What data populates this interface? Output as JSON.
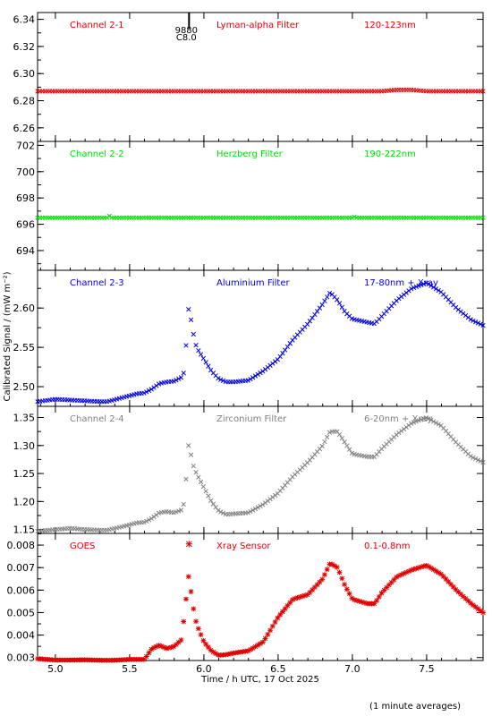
{
  "chart_data": {
    "type": "scatter",
    "xlabel": "Time / h UTC, 17 Oct 2025",
    "ylabel": "Calibrated Signal / (mW m⁻²)",
    "footnote": "(1 minute averages)",
    "xlim": [
      4.88,
      7.88
    ],
    "xticks": [
      5.0,
      5.5,
      6.0,
      6.5,
      7.0,
      7.5
    ],
    "flare_marker": {
      "x": 5.9,
      "label_top": "9880",
      "label_bottom": "C8.0"
    },
    "panels": [
      {
        "channel": "Channel 2-1",
        "filter": "Lyman-alpha Filter",
        "band": "120-123nm",
        "color": "#e00000",
        "marker": "x",
        "ylim": [
          6.25,
          6.345
        ],
        "yticks": [
          6.26,
          6.28,
          6.3,
          6.32,
          6.34
        ],
        "series": [
          {
            "x": [
              4.88,
              5.5,
              6.0,
              6.5,
              7.0,
              7.2,
              7.3,
              7.4,
              7.5,
              7.88
            ],
            "y": [
              6.287,
              6.287,
              6.287,
              6.287,
              6.287,
              6.287,
              6.288,
              6.288,
              6.287,
              6.287
            ]
          }
        ]
      },
      {
        "channel": "Channel 2-2",
        "filter": "Herzberg Filter",
        "band": "190-222nm",
        "color": "#00e000",
        "marker": "x",
        "ylim": [
          692.5,
          702.3
        ],
        "yticks": [
          694,
          696,
          698,
          700,
          702
        ],
        "series": [
          {
            "x": [
              4.88,
              5.35,
              5.36,
              5.37,
              6.0,
              6.5,
              7.0,
              7.01,
              7.02,
              7.88
            ],
            "y": [
              696.5,
              696.5,
              696.7,
              696.5,
              696.5,
              696.5,
              696.5,
              696.6,
              696.5,
              696.5
            ]
          }
        ]
      },
      {
        "channel": "Channel 2-3",
        "filter": "Aluminium Filter",
        "band": "17-80nm + Xray",
        "color": "#0000e0",
        "marker": "x",
        "ylim": [
          2.475,
          2.648
        ],
        "yticks": [
          2.5,
          2.55,
          2.6
        ],
        "series": [
          {
            "x": [
              4.88,
              5.0,
              5.1,
              5.2,
              5.3,
              5.35,
              5.45,
              5.55,
              5.6,
              5.65,
              5.7,
              5.75,
              5.8,
              5.85,
              5.87,
              5.89,
              5.9,
              5.92,
              5.95,
              6.0,
              6.05,
              6.1,
              6.15,
              6.2,
              6.3,
              6.4,
              6.5,
              6.6,
              6.7,
              6.8,
              6.85,
              6.9,
              6.95,
              7.0,
              7.1,
              7.15,
              7.2,
              7.3,
              7.4,
              7.5,
              7.6,
              7.7,
              7.8,
              7.88
            ],
            "y": [
              2.481,
              2.484,
              2.483,
              2.482,
              2.481,
              2.481,
              2.486,
              2.491,
              2.492,
              2.497,
              2.504,
              2.506,
              2.507,
              2.512,
              2.52,
              2.585,
              2.605,
              2.575,
              2.55,
              2.535,
              2.52,
              2.51,
              2.506,
              2.506,
              2.508,
              2.52,
              2.535,
              2.56,
              2.58,
              2.605,
              2.62,
              2.61,
              2.595,
              2.586,
              2.582,
              2.58,
              2.59,
              2.61,
              2.625,
              2.632,
              2.62,
              2.6,
              2.585,
              2.578
            ]
          }
        ]
      },
      {
        "channel": "Channel 2-4",
        "filter": "Zirconium Filter",
        "band": "6-20nm + Xray",
        "color": "#808080",
        "marker": "x",
        "ylim": [
          1.143,
          1.37
        ],
        "yticks": [
          1.15,
          1.2,
          1.25,
          1.3,
          1.35
        ],
        "series": [
          {
            "x": [
              4.88,
              5.0,
              5.1,
              5.2,
              5.3,
              5.35,
              5.45,
              5.55,
              5.6,
              5.65,
              5.7,
              5.75,
              5.8,
              5.85,
              5.87,
              5.89,
              5.9,
              5.92,
              5.95,
              6.0,
              6.05,
              6.1,
              6.15,
              6.2,
              6.3,
              6.4,
              6.5,
              6.6,
              6.7,
              6.8,
              6.85,
              6.9,
              6.95,
              7.0,
              7.1,
              7.15,
              7.2,
              7.3,
              7.4,
              7.5,
              7.6,
              7.7,
              7.8,
              7.88
            ],
            "y": [
              1.147,
              1.15,
              1.152,
              1.15,
              1.149,
              1.149,
              1.155,
              1.162,
              1.163,
              1.17,
              1.18,
              1.182,
              1.18,
              1.185,
              1.2,
              1.28,
              1.31,
              1.27,
              1.25,
              1.225,
              1.2,
              1.183,
              1.177,
              1.178,
              1.18,
              1.195,
              1.215,
              1.245,
              1.27,
              1.3,
              1.325,
              1.325,
              1.305,
              1.285,
              1.28,
              1.28,
              1.295,
              1.32,
              1.34,
              1.35,
              1.335,
              1.305,
              1.28,
              1.27
            ]
          }
        ]
      },
      {
        "channel": "GOES",
        "filter": "Xray Sensor",
        "band": "0.1-0.8nm",
        "color": "#e00000",
        "marker": "*",
        "ylim": [
          0.00287,
          0.00852
        ],
        "yticks": [
          0.003,
          0.004,
          0.005,
          0.006,
          0.007,
          0.008
        ],
        "series": [
          {
            "x": [
              4.88,
              5.0,
              5.1,
              5.2,
              5.3,
              5.4,
              5.5,
              5.6,
              5.65,
              5.7,
              5.75,
              5.8,
              5.85,
              5.87,
              5.88,
              5.89,
              5.9,
              5.92,
              5.95,
              6.0,
              6.05,
              6.1,
              6.15,
              6.2,
              6.3,
              6.4,
              6.5,
              6.6,
              6.7,
              6.8,
              6.85,
              6.9,
              6.95,
              7.0,
              7.1,
              7.15,
              7.2,
              7.3,
              7.4,
              7.5,
              7.6,
              7.7,
              7.8,
              7.88
            ],
            "y": [
              0.00295,
              0.00289,
              0.00289,
              0.0029,
              0.00288,
              0.00288,
              0.00292,
              0.00292,
              0.0034,
              0.00355,
              0.0034,
              0.0035,
              0.0038,
              0.005,
              0.0056,
              0.0062,
              0.0068,
              0.0055,
              0.0045,
              0.0037,
              0.0033,
              0.0031,
              0.00313,
              0.0032,
              0.0033,
              0.0037,
              0.0048,
              0.0056,
              0.0058,
              0.0065,
              0.0072,
              0.007,
              0.0062,
              0.0056,
              0.0054,
              0.0054,
              0.0059,
              0.0066,
              0.0069,
              0.0071,
              0.0067,
              0.006,
              0.0054,
              0.005
            ]
          }
        ],
        "outlier": {
          "x": 5.9,
          "y": 0.00805
        }
      }
    ]
  }
}
